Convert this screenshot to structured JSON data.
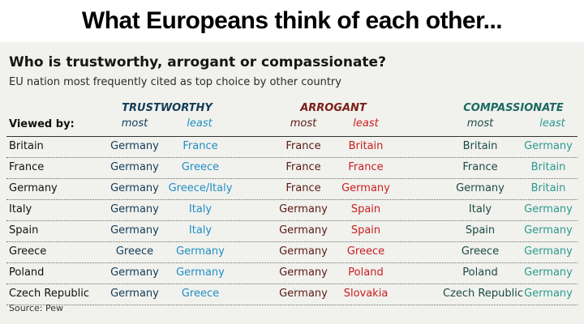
{
  "banner": {
    "title": "What Europeans think of each other..."
  },
  "card": {
    "title": "Who is trustworthy, arrogant or compassionate?",
    "subtitle": "EU nation most frequently cited as top choice by other country",
    "viewed_by": "Viewed by:",
    "source": "Source: Pew"
  },
  "groups": {
    "trustworthy": {
      "label": "TRUSTWORTHY",
      "most": "most",
      "least": "least",
      "color": "#123c57",
      "least_color": "#1f8fc4"
    },
    "arrogant": {
      "label": "ARROGANT",
      "most": "most",
      "least": "least",
      "color": "#7a1f16",
      "least_color": "#c81e1e"
    },
    "compassionate": {
      "label": "COMPASSIONATE",
      "most": "most",
      "least": "least",
      "color": "#1c6a60",
      "least_color": "#2a9a8e"
    }
  },
  "rows": [
    {
      "country": "Britain",
      "trust_most": "Germany",
      "trust_least": "France",
      "arr_most": "France",
      "arr_least": "Britain",
      "comp_most": "Britain",
      "comp_least": "Germany"
    },
    {
      "country": "France",
      "trust_most": "Germany",
      "trust_least": "Greece",
      "arr_most": "France",
      "arr_least": "France",
      "comp_most": "France",
      "comp_least": "Britain"
    },
    {
      "country": "Germany",
      "trust_most": "Germany",
      "trust_least": "Greece/Italy",
      "arr_most": "France",
      "arr_least": "Germany",
      "comp_most": "Germany",
      "comp_least": "Britain"
    },
    {
      "country": "Italy",
      "trust_most": "Germany",
      "trust_least": "Italy",
      "arr_most": "Germany",
      "arr_least": "Spain",
      "comp_most": "Italy",
      "comp_least": "Germany"
    },
    {
      "country": "Spain",
      "trust_most": "Germany",
      "trust_least": "Italy",
      "arr_most": "Germany",
      "arr_least": "Spain",
      "comp_most": "Spain",
      "comp_least": "Germany"
    },
    {
      "country": "Greece",
      "trust_most": "Greece",
      "trust_least": "Germany",
      "arr_most": "Germany",
      "arr_least": "Greece",
      "comp_most": "Greece",
      "comp_least": "Germany"
    },
    {
      "country": "Poland",
      "trust_most": "Germany",
      "trust_least": "Germany",
      "arr_most": "Germany",
      "arr_least": "Poland",
      "comp_most": "Poland",
      "comp_least": "Germany"
    },
    {
      "country": "Czech Republic",
      "trust_most": "Germany",
      "trust_least": "Greece",
      "arr_most": "Germany",
      "arr_least": "Slovakia",
      "comp_most": "Czech Republic",
      "comp_least": "Germany"
    }
  ]
}
